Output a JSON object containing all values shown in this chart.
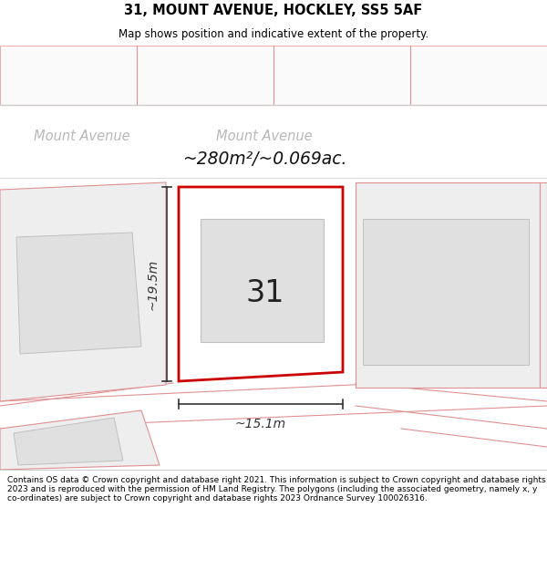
{
  "title_line1": "31, MOUNT AVENUE, HOCKLEY, SS5 5AF",
  "title_line2": "Map shows position and indicative extent of the property.",
  "area_text": "~280m²/~0.069ac.",
  "street_name_left": "Mount Avenue",
  "street_name_right": "Mount Avenue",
  "plot_number": "31",
  "dim_width": "~15.1m",
  "dim_height": "~19.5m",
  "footer_text": "Contains OS data © Crown copyright and database right 2021. This information is subject to Crown copyright and database rights 2023 and is reproduced with the permission of HM Land Registry. The polygons (including the associated geometry, namely x, y co-ordinates) are subject to Crown copyright and database rights 2023 Ordnance Survey 100026316.",
  "title_bg": "#ffffff",
  "map_bg": "#ffffff",
  "footer_bg": "#ffffff",
  "plot_border_color": "#cc0000",
  "plot_fill": "#ffffff",
  "building_fill": "#e0e0e0",
  "building_edge": "#c0c0c0",
  "neighbor_fill": "#eeeeee",
  "neighbor_edge": "#e09090",
  "road_line": "#e09090",
  "dim_color": "#333333",
  "street_label_color": "#b8b8b8",
  "area_label_color": "#111111",
  "number_color": "#222222",
  "separator_color": "#cccccc"
}
